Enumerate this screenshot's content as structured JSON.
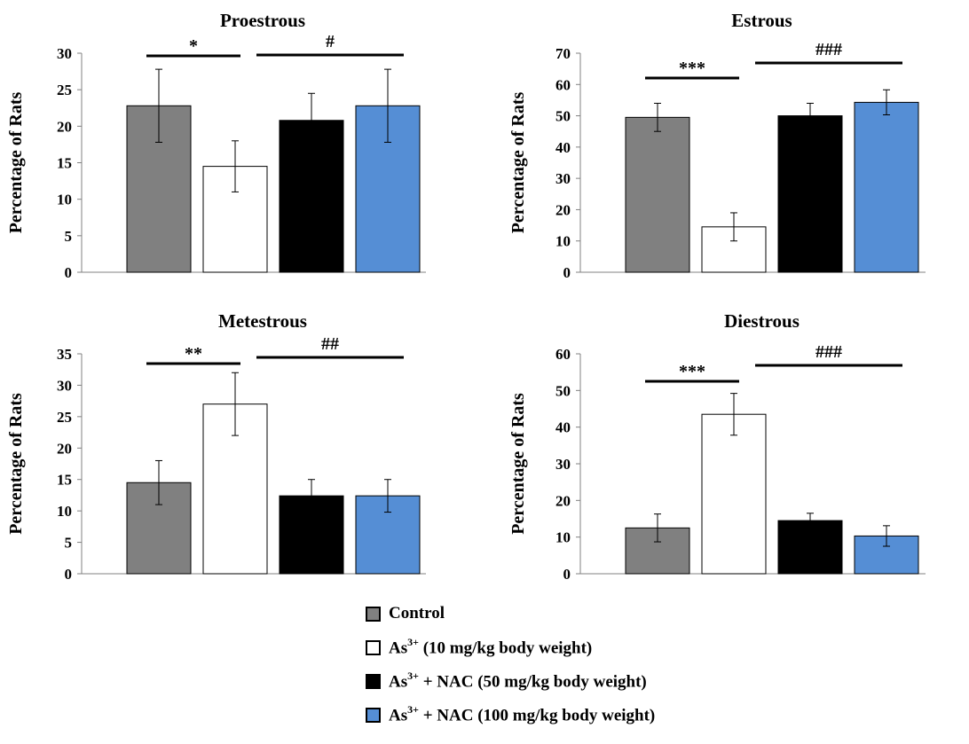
{
  "chart_data": [
    {
      "type": "bar",
      "title": "Proestrous",
      "ylabel": "Percentage of Rats",
      "ylim": [
        0,
        30
      ],
      "yticks": [
        0,
        5,
        10,
        15,
        20,
        25,
        30
      ],
      "series": [
        {
          "name": "Control",
          "value": 22.8,
          "error": 5.0
        },
        {
          "name": "As3+ (10 mg/kg body weight)",
          "value": 14.5,
          "error": 3.5
        },
        {
          "name": "As3+ + NAC (50 mg/kg body weight)",
          "value": 20.8,
          "error": 3.7
        },
        {
          "name": "As3+ + NAC (100 mg/kg body weight)",
          "value": 22.8,
          "error": 5.0
        }
      ],
      "annotations": [
        {
          "label": "*",
          "from_bar": 0,
          "to_bar": 1
        },
        {
          "label": "#",
          "from_bar": 1,
          "to_bar": 3
        }
      ]
    },
    {
      "type": "bar",
      "title": "Estrous",
      "ylabel": "Percentage of Rats",
      "ylim": [
        0,
        70
      ],
      "yticks": [
        0,
        10,
        20,
        30,
        40,
        50,
        60,
        70
      ],
      "series": [
        {
          "name": "Control",
          "value": 49.5,
          "error": 4.5
        },
        {
          "name": "As3+ (10 mg/kg body weight)",
          "value": 14.5,
          "error": 4.5
        },
        {
          "name": "As3+ + NAC (50 mg/kg body weight)",
          "value": 50.0,
          "error": 4.0
        },
        {
          "name": "As3+ + NAC (100 mg/kg body weight)",
          "value": 54.3,
          "error": 4.0
        }
      ],
      "annotations": [
        {
          "label": "***",
          "from_bar": 0,
          "to_bar": 1
        },
        {
          "label": "###",
          "from_bar": 1,
          "to_bar": 3
        }
      ]
    },
    {
      "type": "bar",
      "title": "Metestrous",
      "ylabel": "Percentage of Rats",
      "ylim": [
        0,
        35
      ],
      "yticks": [
        0,
        5,
        10,
        15,
        20,
        25,
        30,
        35
      ],
      "series": [
        {
          "name": "Control",
          "value": 14.5,
          "error": 3.5
        },
        {
          "name": "As3+ (10 mg/kg body weight)",
          "value": 27.0,
          "error": 5.0
        },
        {
          "name": "As3+ + NAC (50 mg/kg body weight)",
          "value": 12.4,
          "error": 2.6
        },
        {
          "name": "As3+ + NAC (100 mg/kg body weight)",
          "value": 12.4,
          "error": 2.6
        }
      ],
      "annotations": [
        {
          "label": "**",
          "from_bar": 0,
          "to_bar": 1
        },
        {
          "label": "##",
          "from_bar": 1,
          "to_bar": 3
        }
      ]
    },
    {
      "type": "bar",
      "title": "Diestrous",
      "ylabel": "Percentage of Rats",
      "ylim": [
        0,
        60
      ],
      "yticks": [
        0,
        10,
        20,
        30,
        40,
        50,
        60
      ],
      "series": [
        {
          "name": "Control",
          "value": 12.5,
          "error": 3.8
        },
        {
          "name": "As3+ (10 mg/kg body weight)",
          "value": 43.5,
          "error": 5.7
        },
        {
          "name": "As3+ + NAC (50 mg/kg body weight)",
          "value": 14.5,
          "error": 2.0
        },
        {
          "name": "As3+ + NAC (100 mg/kg body weight)",
          "value": 10.3,
          "error": 2.8
        }
      ],
      "annotations": [
        {
          "label": "***",
          "from_bar": 0,
          "to_bar": 1
        },
        {
          "label": "###",
          "from_bar": 1,
          "to_bar": 3
        }
      ]
    }
  ],
  "colors": {
    "control": "#808080",
    "as3": "#ffffff",
    "nac50": "#000000",
    "nac100": "#558ed5"
  },
  "legend": {
    "placement": "bottom-center",
    "items": [
      {
        "text": "Control",
        "color": "#808080"
      },
      {
        "prefix": "As",
        "sup": "3+",
        "text": " (10 mg/kg body weight)",
        "color": "#ffffff"
      },
      {
        "prefix": "As",
        "sup": "3+",
        "text": " + NAC (50 mg/kg body weight)",
        "color": "#000000"
      },
      {
        "prefix": "As",
        "sup": "3+",
        "text": " + NAC (100 mg/kg body weight)",
        "color": "#558ed5"
      }
    ]
  }
}
